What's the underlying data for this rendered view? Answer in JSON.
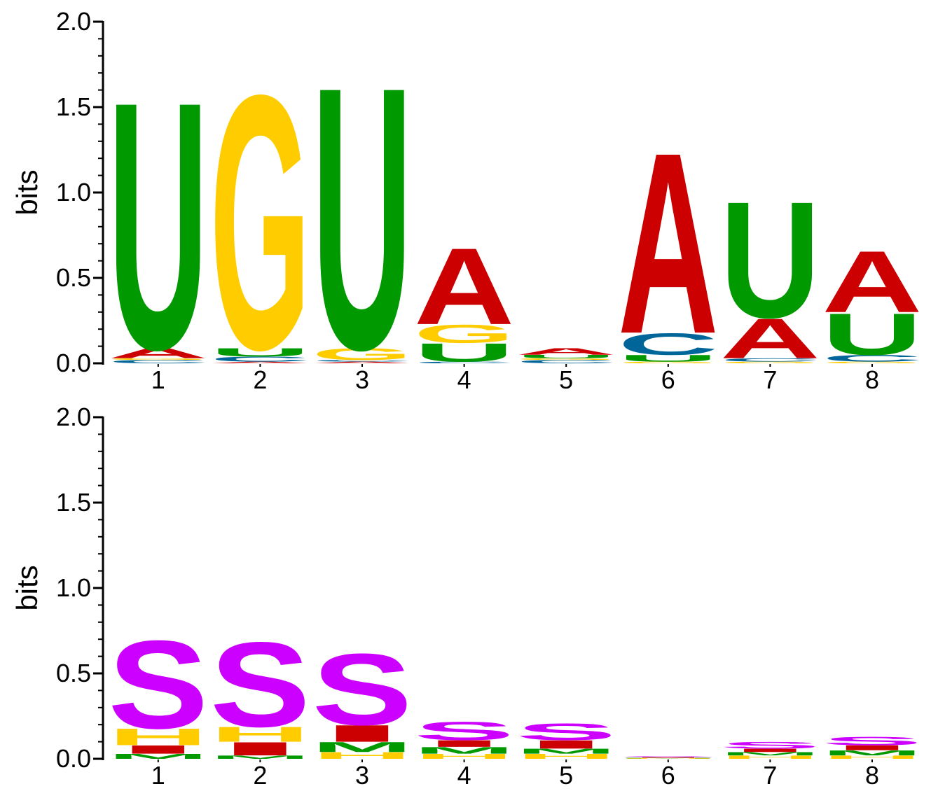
{
  "chart_data": [
    {
      "type": "sequence-logo",
      "ylabel": "bits",
      "ylim": [
        0,
        2.0
      ],
      "yticks": [
        "0.0",
        "0.5",
        "1.0",
        "1.5",
        "2.0"
      ],
      "positions": [
        "1",
        "2",
        "3",
        "4",
        "5",
        "6",
        "7",
        "8"
      ],
      "colors": {
        "A": "#cc0000",
        "C": "#006699",
        "G": "#ffcc00",
        "U": "#009900"
      },
      "stacks": [
        [
          {
            "letter": "C",
            "value": 0.02
          },
          {
            "letter": "G",
            "value": 0.01
          },
          {
            "letter": "A",
            "value": 0.06
          },
          {
            "letter": "U",
            "value": 1.49
          }
        ],
        [
          {
            "letter": "A",
            "value": 0.01
          },
          {
            "letter": "C",
            "value": 0.03
          },
          {
            "letter": "U",
            "value": 0.05
          },
          {
            "letter": "G",
            "value": 1.53
          }
        ],
        [
          {
            "letter": "A",
            "value": 0.01
          },
          {
            "letter": "C",
            "value": 0.01
          },
          {
            "letter": "G",
            "value": 0.07
          },
          {
            "letter": "U",
            "value": 1.58
          }
        ],
        [
          {
            "letter": "C",
            "value": 0.01
          },
          {
            "letter": "U",
            "value": 0.11
          },
          {
            "letter": "G",
            "value": 0.11
          },
          {
            "letter": "A",
            "value": 0.46
          }
        ],
        [
          {
            "letter": "C",
            "value": 0.02
          },
          {
            "letter": "G",
            "value": 0.01
          },
          {
            "letter": "U",
            "value": 0.02
          },
          {
            "letter": "A",
            "value": 0.04
          }
        ],
        [
          {
            "letter": "G",
            "value": 0.01
          },
          {
            "letter": "U",
            "value": 0.04
          },
          {
            "letter": "C",
            "value": 0.13
          },
          {
            "letter": "A",
            "value": 1.09
          }
        ],
        [
          {
            "letter": "G",
            "value": 0.01
          },
          {
            "letter": "C",
            "value": 0.02
          },
          {
            "letter": "A",
            "value": 0.24
          },
          {
            "letter": "U",
            "value": 0.7
          }
        ],
        [
          {
            "letter": "G",
            "value": 0.01
          },
          {
            "letter": "C",
            "value": 0.04
          },
          {
            "letter": "U",
            "value": 0.25
          },
          {
            "letter": "A",
            "value": 0.37
          }
        ]
      ]
    },
    {
      "type": "sequence-logo",
      "ylabel": "bits",
      "ylim": [
        0,
        2.0
      ],
      "yticks": [
        "0.0",
        "0.5",
        "1.0",
        "1.5",
        "2.0"
      ],
      "positions": [
        "1",
        "2",
        "3",
        "4",
        "5",
        "6",
        "7",
        "8"
      ],
      "colors": {
        "S": "#cc00ff",
        "H": "#ffcc00",
        "I": "#cc0000",
        "M": "#009900"
      },
      "stacks": [
        [
          {
            "letter": "M",
            "value": 0.03
          },
          {
            "letter": "I",
            "value": 0.05
          },
          {
            "letter": "H",
            "value": 0.1
          },
          {
            "letter": "S",
            "value": 0.53
          }
        ],
        [
          {
            "letter": "M",
            "value": 0.02
          },
          {
            "letter": "I",
            "value": 0.08
          },
          {
            "letter": "H",
            "value": 0.09
          },
          {
            "letter": "S",
            "value": 0.51
          }
        ],
        [
          {
            "letter": "H",
            "value": 0.04
          },
          {
            "letter": "M",
            "value": 0.06
          },
          {
            "letter": "I",
            "value": 0.1
          },
          {
            "letter": "S",
            "value": 0.43
          }
        ],
        [
          {
            "letter": "H",
            "value": 0.03
          },
          {
            "letter": "M",
            "value": 0.04
          },
          {
            "letter": "I",
            "value": 0.04
          },
          {
            "letter": "S",
            "value": 0.11
          }
        ],
        [
          {
            "letter": "H",
            "value": 0.03
          },
          {
            "letter": "M",
            "value": 0.03
          },
          {
            "letter": "I",
            "value": 0.05
          },
          {
            "letter": "S",
            "value": 0.1
          }
        ],
        [
          {
            "letter": "H",
            "value": 0.003
          },
          {
            "letter": "M",
            "value": 0.003
          },
          {
            "letter": "I",
            "value": 0.004
          },
          {
            "letter": "S",
            "value": 0.005
          }
        ],
        [
          {
            "letter": "H",
            "value": 0.02
          },
          {
            "letter": "M",
            "value": 0.02
          },
          {
            "letter": "I",
            "value": 0.02
          },
          {
            "letter": "S",
            "value": 0.04
          }
        ],
        [
          {
            "letter": "H",
            "value": 0.02
          },
          {
            "letter": "M",
            "value": 0.03
          },
          {
            "letter": "I",
            "value": 0.03
          },
          {
            "letter": "S",
            "value": 0.05
          }
        ]
      ]
    }
  ]
}
